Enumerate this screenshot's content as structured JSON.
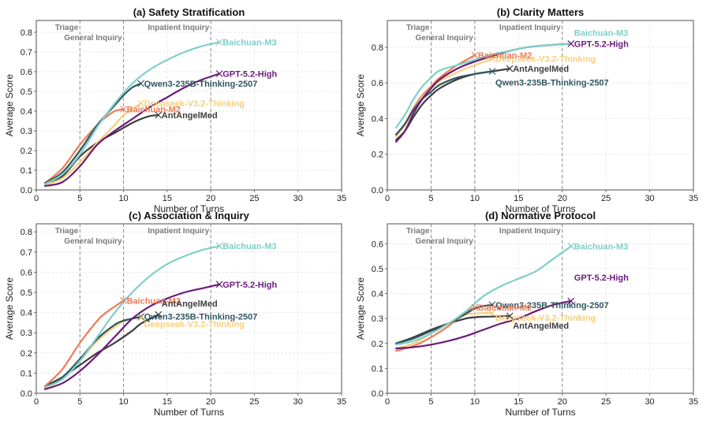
{
  "colors": {
    "Baichuan-M3": "#7fd0c8",
    "GPT-5.2-High": "#6a1b7a",
    "Qwen3-235B-Thinking-2507": "#2f5560",
    "Deepseek-V3.2-Thinking": "#f7cf7c",
    "Baichuan-M2": "#ee7b55",
    "AntAngelMed": "#3d3d3d"
  },
  "chart_data": [
    {
      "type": "line",
      "title": "(a) Safety Stratification",
      "xlabel": "Number of Turns",
      "ylabel": "Average Score",
      "xlim": [
        0,
        35
      ],
      "ylim": [
        0,
        0.86
      ],
      "xticks": [
        0,
        5,
        10,
        15,
        20,
        25,
        30,
        35
      ],
      "yticks": [
        0.0,
        0.1,
        0.2,
        0.3,
        0.4,
        0.5,
        0.6,
        0.7,
        0.8
      ],
      "ytick_labels": [
        "0.0",
        "0.1",
        "0.2",
        "0.3",
        "0.4",
        "0.5",
        "0.6",
        "0.7",
        "0.8"
      ],
      "grid": true,
      "phases": [
        {
          "label": "Triage",
          "x": 5,
          "row": 0
        },
        {
          "label": "General Inquiry",
          "x": 10,
          "row": 1
        },
        {
          "label": "Inpatient Inquiry",
          "x": 20,
          "row": 0
        }
      ],
      "series": [
        {
          "name": "Baichuan-M3",
          "x": [
            1,
            3,
            5,
            7,
            9,
            11,
            13,
            15,
            17,
            19,
            21
          ],
          "y": [
            0.03,
            0.08,
            0.18,
            0.32,
            0.44,
            0.54,
            0.61,
            0.66,
            0.7,
            0.73,
            0.75
          ],
          "label_dy": 0
        },
        {
          "name": "GPT-5.2-High",
          "x": [
            1,
            3,
            5,
            7,
            9,
            11,
            13,
            15,
            17,
            19,
            21
          ],
          "y": [
            0.02,
            0.04,
            0.12,
            0.23,
            0.3,
            0.36,
            0.42,
            0.47,
            0.52,
            0.56,
            0.59
          ],
          "label_dy": 0
        },
        {
          "name": "Qwen3-235B-Thinking-2507",
          "x": [
            1,
            3,
            5,
            7,
            9,
            10,
            11,
            12
          ],
          "y": [
            0.035,
            0.09,
            0.2,
            0.33,
            0.43,
            0.48,
            0.52,
            0.54
          ],
          "label_dy": 0
        },
        {
          "name": "Deepseek-V3.2-Thinking",
          "x": [
            1,
            3,
            5,
            7,
            9,
            10,
            11,
            12
          ],
          "y": [
            0.025,
            0.06,
            0.14,
            0.24,
            0.33,
            0.38,
            0.41,
            0.44
          ],
          "label_dy": 0
        },
        {
          "name": "Baichuan-M2",
          "x": [
            1,
            3,
            5,
            7,
            8,
            9,
            10
          ],
          "y": [
            0.035,
            0.11,
            0.23,
            0.33,
            0.37,
            0.4,
            0.41
          ],
          "label_dy": 0
        },
        {
          "name": "AntAngelMed",
          "x": [
            1,
            3,
            5,
            7,
            9,
            11,
            12,
            13,
            14
          ],
          "y": [
            0.03,
            0.07,
            0.17,
            0.24,
            0.29,
            0.34,
            0.36,
            0.375,
            0.38
          ],
          "label_dy": 0
        }
      ]
    },
    {
      "type": "line",
      "title": "(b) Clarity Matters",
      "xlabel": "Number of Turns",
      "ylabel": "Average Score",
      "xlim": [
        0,
        35
      ],
      "ylim": [
        0,
        0.95
      ],
      "xticks": [
        0,
        5,
        10,
        15,
        20,
        25,
        30,
        35
      ],
      "yticks": [
        0.0,
        0.2,
        0.4,
        0.6,
        0.8
      ],
      "ytick_labels": [
        "0.0",
        "0.2",
        "0.4",
        "0.6",
        "0.8"
      ],
      "grid": true,
      "phases": [
        {
          "label": "Triage",
          "x": 5,
          "row": 0
        },
        {
          "label": "General Inquiry",
          "x": 10,
          "row": 1
        },
        {
          "label": "Inpatient Inquiry",
          "x": 20,
          "row": 0
        }
      ],
      "series": [
        {
          "name": "Baichuan-M3",
          "x": [
            1,
            2,
            3,
            4,
            5,
            6,
            8,
            10,
            12,
            14,
            16,
            18,
            21
          ],
          "y": [
            0.35,
            0.42,
            0.51,
            0.58,
            0.63,
            0.67,
            0.7,
            0.73,
            0.76,
            0.78,
            0.8,
            0.81,
            0.82
          ],
          "label_dy": -14
        },
        {
          "name": "GPT-5.2-High",
          "x": [
            1,
            2,
            3,
            4,
            5,
            6,
            8,
            10,
            12,
            14,
            16,
            18,
            21
          ],
          "y": [
            0.27,
            0.33,
            0.43,
            0.51,
            0.57,
            0.62,
            0.68,
            0.72,
            0.75,
            0.78,
            0.8,
            0.81,
            0.82
          ],
          "label_dy": 0
        },
        {
          "name": "Qwen3-235B-Thinking-2507",
          "x": [
            1,
            2,
            3,
            4,
            5,
            6,
            8,
            10,
            12
          ],
          "y": [
            0.31,
            0.37,
            0.45,
            0.51,
            0.55,
            0.59,
            0.63,
            0.65,
            0.665
          ],
          "label_dy": 14
        },
        {
          "name": "Deepseek-V3.2-Thinking",
          "x": [
            1,
            2,
            3,
            4,
            5,
            6,
            8,
            10,
            12
          ],
          "y": [
            0.3,
            0.36,
            0.45,
            0.52,
            0.57,
            0.61,
            0.66,
            0.7,
            0.735
          ],
          "label_dy": 0
        },
        {
          "name": "Baichuan-M2",
          "x": [
            1,
            2,
            3,
            4,
            5,
            6,
            8,
            10
          ],
          "y": [
            0.31,
            0.37,
            0.46,
            0.53,
            0.58,
            0.63,
            0.7,
            0.755
          ],
          "label_dy": 0
        },
        {
          "name": "AntAngelMed",
          "x": [
            1,
            2,
            3,
            4,
            5,
            6,
            8,
            10,
            12,
            14
          ],
          "y": [
            0.28,
            0.33,
            0.41,
            0.48,
            0.53,
            0.57,
            0.62,
            0.65,
            0.665,
            0.68
          ],
          "label_dy": 0
        }
      ]
    },
    {
      "type": "line",
      "title": "(c) Association & Inquiry",
      "xlabel": "Number of Turns",
      "ylabel": "Average Score",
      "xlim": [
        0,
        35
      ],
      "ylim": [
        0,
        0.84
      ],
      "xticks": [
        0,
        5,
        10,
        15,
        20,
        25,
        30,
        35
      ],
      "yticks": [
        0.0,
        0.1,
        0.2,
        0.3,
        0.4,
        0.5,
        0.6,
        0.7,
        0.8
      ],
      "ytick_labels": [
        "0.0",
        "0.1",
        "0.2",
        "0.3",
        "0.4",
        "0.5",
        "0.6",
        "0.7",
        "0.8"
      ],
      "grid": true,
      "phases": [
        {
          "label": "Triage",
          "x": 5,
          "row": 0
        },
        {
          "label": "General Inquiry",
          "x": 10,
          "row": 1
        },
        {
          "label": "Inpatient Inquiry",
          "x": 20,
          "row": 0
        }
      ],
      "series": [
        {
          "name": "Baichuan-M3",
          "x": [
            1,
            3,
            5,
            7,
            9,
            11,
            13,
            15,
            17,
            19,
            21
          ],
          "y": [
            0.03,
            0.07,
            0.16,
            0.28,
            0.4,
            0.5,
            0.58,
            0.64,
            0.68,
            0.71,
            0.73
          ],
          "label_dy": 0
        },
        {
          "name": "GPT-5.2-High",
          "x": [
            1,
            3,
            5,
            7,
            9,
            11,
            13,
            15,
            17,
            19,
            21
          ],
          "y": [
            0.02,
            0.05,
            0.11,
            0.19,
            0.28,
            0.37,
            0.43,
            0.47,
            0.5,
            0.52,
            0.54
          ],
          "label_dy": 0
        },
        {
          "name": "Qwen3-235B-Thinking-2507",
          "x": [
            1,
            3,
            5,
            7,
            9,
            10,
            11,
            12
          ],
          "y": [
            0.03,
            0.08,
            0.17,
            0.27,
            0.34,
            0.36,
            0.37,
            0.38
          ],
          "label_dy": 0
        },
        {
          "name": "Deepseek-V3.2-Thinking",
          "x": [
            1,
            3,
            5,
            7,
            9,
            10,
            11,
            12
          ],
          "y": [
            0.025,
            0.07,
            0.16,
            0.26,
            0.33,
            0.355,
            0.37,
            0.375
          ],
          "label_dy": 8
        },
        {
          "name": "Baichuan-M2",
          "x": [
            1,
            3,
            5,
            7,
            8,
            9,
            10
          ],
          "y": [
            0.035,
            0.12,
            0.25,
            0.36,
            0.4,
            0.43,
            0.46
          ],
          "label_dy": 0
        },
        {
          "name": "AntAngelMed",
          "x": [
            1,
            3,
            5,
            7,
            9,
            11,
            12,
            14
          ],
          "y": [
            0.035,
            0.08,
            0.14,
            0.2,
            0.25,
            0.31,
            0.345,
            0.39
          ],
          "label_dy": -14
        }
      ]
    },
    {
      "type": "line",
      "title": "(d) Normative Protocol",
      "xlabel": "Number of Turns",
      "ylabel": "Average Score",
      "xlim": [
        0,
        35
      ],
      "ylim": [
        0,
        0.68
      ],
      "xticks": [
        0,
        5,
        10,
        15,
        20,
        25,
        30,
        35
      ],
      "yticks": [
        0.0,
        0.1,
        0.2,
        0.3,
        0.4,
        0.5,
        0.6
      ],
      "ytick_labels": [
        "0.0",
        "0.1",
        "0.2",
        "0.3",
        "0.4",
        "0.5",
        "0.6"
      ],
      "grid": true,
      "phases": [
        {
          "label": "Triage",
          "x": 5,
          "row": 0
        },
        {
          "label": "General Inquiry",
          "x": 10,
          "row": 1
        },
        {
          "label": "Inpatient Inquiry",
          "x": 20,
          "row": 0
        }
      ],
      "series": [
        {
          "name": "Baichuan-M3",
          "x": [
            1,
            3,
            5,
            7,
            9,
            11,
            13,
            15,
            17,
            19,
            21
          ],
          "y": [
            0.195,
            0.21,
            0.24,
            0.28,
            0.33,
            0.39,
            0.43,
            0.46,
            0.49,
            0.54,
            0.59
          ],
          "label_dy": 0
        },
        {
          "name": "GPT-5.2-High",
          "x": [
            1,
            3,
            5,
            7,
            9,
            11,
            13,
            15,
            17,
            19,
            21
          ],
          "y": [
            0.18,
            0.185,
            0.195,
            0.21,
            0.23,
            0.255,
            0.28,
            0.3,
            0.33,
            0.355,
            0.37
          ],
          "label_dy": -30
        },
        {
          "name": "Qwen3-235B-Thinking-2507",
          "x": [
            1,
            3,
            5,
            7,
            9,
            10,
            11,
            12
          ],
          "y": [
            0.2,
            0.22,
            0.25,
            0.28,
            0.32,
            0.34,
            0.35,
            0.355
          ],
          "label_dy": 0
        },
        {
          "name": "Deepseek-V3.2-Thinking",
          "x": [
            1,
            3,
            5,
            7,
            9,
            10,
            11,
            12
          ],
          "y": [
            0.18,
            0.2,
            0.24,
            0.28,
            0.315,
            0.32,
            0.322,
            0.322
          ],
          "label_dy": 6
        },
        {
          "name": "Baichuan-M2",
          "x": [
            1,
            3,
            5,
            7,
            8,
            9,
            10
          ],
          "y": [
            0.17,
            0.19,
            0.225,
            0.27,
            0.3,
            0.325,
            0.345
          ],
          "label_dy": 0
        },
        {
          "name": "AntAngelMed",
          "x": [
            1,
            3,
            5,
            7,
            9,
            10,
            11,
            12,
            14
          ],
          "y": [
            0.2,
            0.225,
            0.255,
            0.28,
            0.3,
            0.305,
            0.307,
            0.308,
            0.31
          ],
          "label_dy": 12
        }
      ]
    }
  ]
}
